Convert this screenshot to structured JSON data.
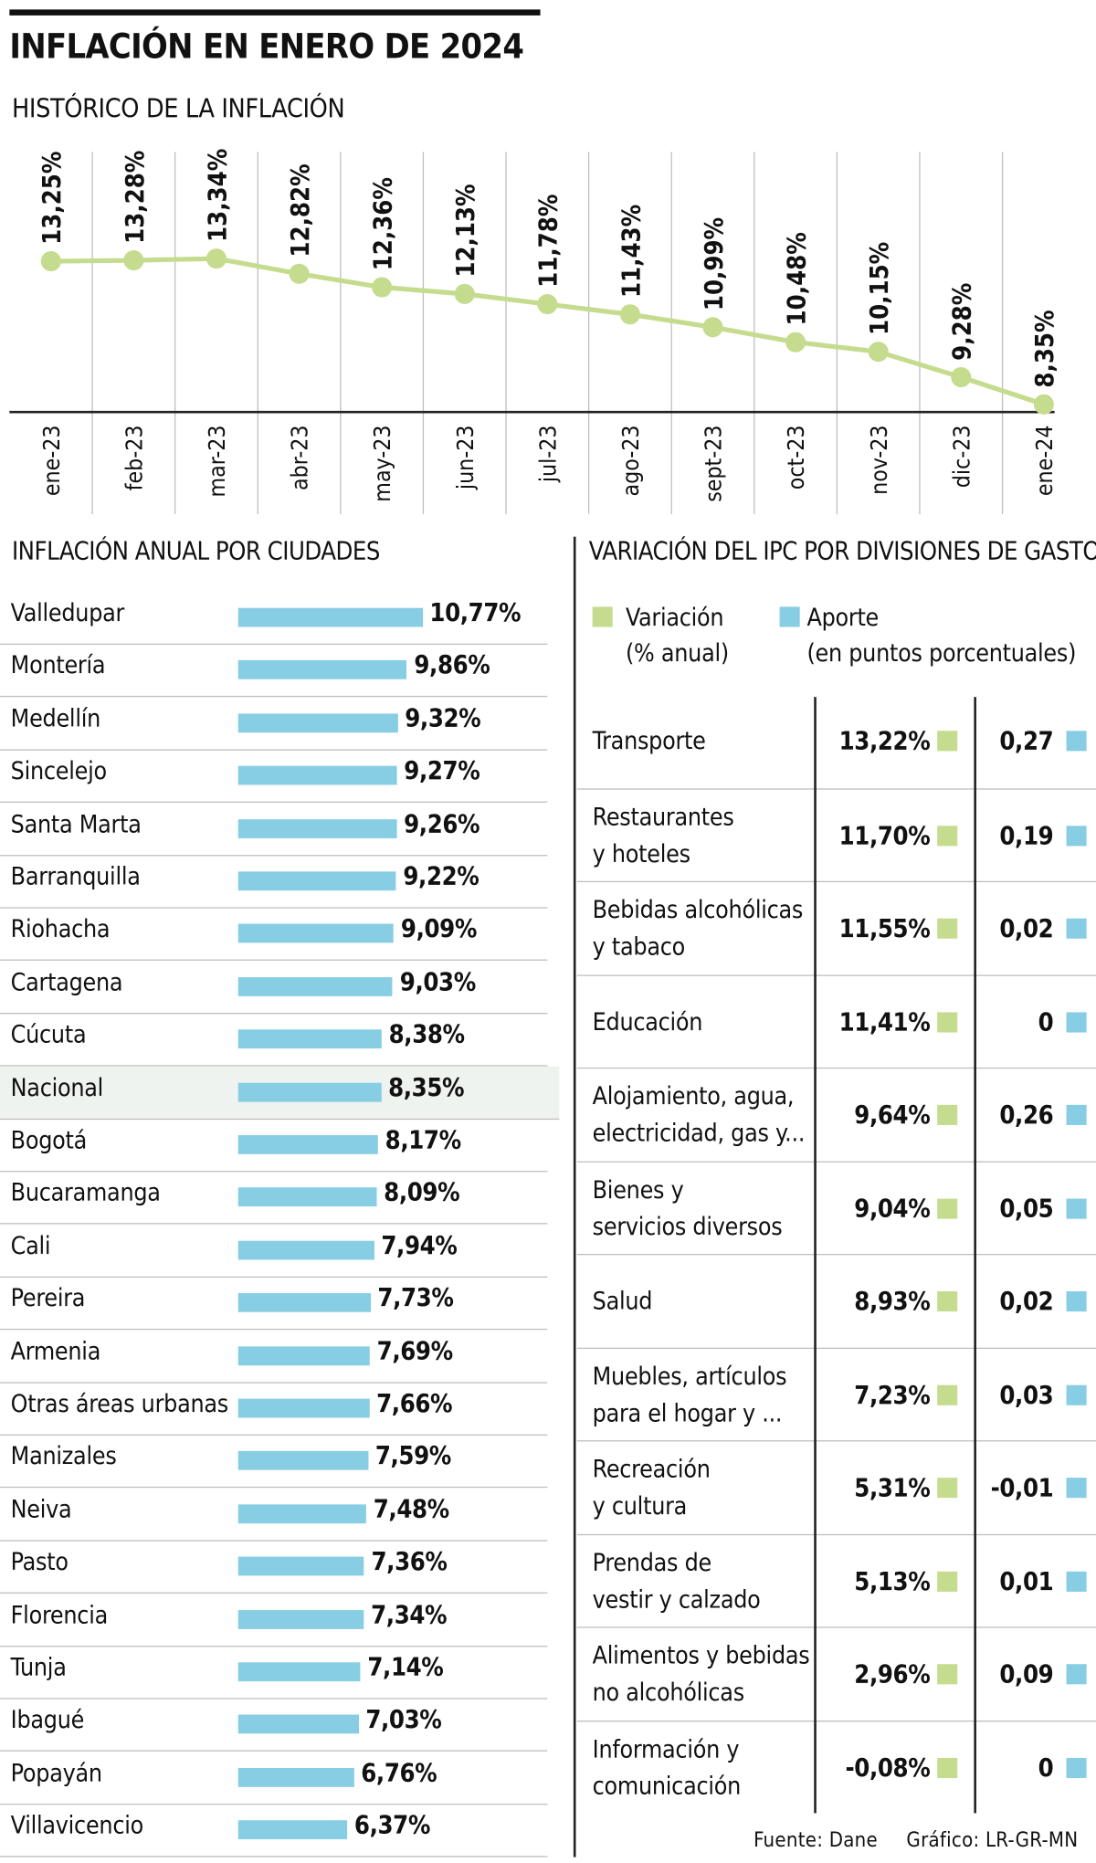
{
  "header": {
    "title": "INFLACIÓN EN ENERO DE 2024",
    "subtitle": "HISTÓRICO DE LA INFLACIÓN"
  },
  "colors": {
    "line": "#c5dc8f",
    "bar": "#87cde3",
    "grid": "#bfbfbf",
    "highlight_row": "#eef3ef"
  },
  "sections": {
    "cities_title": "INFLACIÓN ANUAL POR CIUDADES",
    "ipc_title": "VARIACIÓN DEL IPC POR DIVISIONES DE GASTO"
  },
  "legend": {
    "variacion": [
      "Variación",
      "(% anual)"
    ],
    "aporte": [
      "Aporte",
      "(en puntos porcentuales)"
    ]
  },
  "chart_data": [
    {
      "type": "line",
      "title": "HISTÓRICO DE LA INFLACIÓN",
      "x": [
        "ene-23",
        "feb-23",
        "mar-23",
        "abr-23",
        "may-23",
        "jun-23",
        "jul-23",
        "ago-23",
        "sept-23",
        "oct-23",
        "nov-23",
        "dic-23",
        "ene-24"
      ],
      "values": [
        13.25,
        13.28,
        13.34,
        12.82,
        12.36,
        12.13,
        11.78,
        11.43,
        10.99,
        10.48,
        10.15,
        9.28,
        8.35
      ],
      "labels": [
        "13,25%",
        "13,28%",
        "13,34%",
        "12,82%",
        "12,36%",
        "12,13%",
        "11,78%",
        "11,43%",
        "10,99%",
        "10,48%",
        "10,15%",
        "9,28%",
        "8,35%"
      ],
      "grid": "vertical"
    },
    {
      "type": "bar",
      "orientation": "horizontal",
      "title": "INFLACIÓN ANUAL POR CIUDADES",
      "highlight": "Nacional",
      "categories": [
        "Valledupar",
        "Montería",
        "Medellín",
        "Sincelejo",
        "Santa Marta",
        "Barranquilla",
        "Riohacha",
        "Cartagena",
        "Cúcuta",
        "Nacional",
        "Bogotá",
        "Bucaramanga",
        "Cali",
        "Pereira",
        "Armenia",
        "Otras áreas urbanas",
        "Manizales",
        "Neiva",
        "Pasto",
        "Florencia",
        "Tunja",
        "Ibagué",
        "Popayán",
        "Villavicencio"
      ],
      "values": [
        10.77,
        9.86,
        9.32,
        9.27,
        9.26,
        9.22,
        9.09,
        9.03,
        8.38,
        8.35,
        8.17,
        8.09,
        7.94,
        7.73,
        7.69,
        7.66,
        7.59,
        7.48,
        7.36,
        7.34,
        7.14,
        7.03,
        6.76,
        6.37
      ],
      "labels": [
        "10,77%",
        "9,86%",
        "9,32%",
        "9,27%",
        "9,26%",
        "9,22%",
        "9,09%",
        "9,03%",
        "8,38%",
        "8,35%",
        "8,17%",
        "8,09%",
        "7,94%",
        "7,73%",
        "7,69%",
        "7,66%",
        "7,59%",
        "7,48%",
        "7,36%",
        "7,34%",
        "7,14%",
        "7,03%",
        "6,76%",
        "6,37%"
      ]
    },
    {
      "type": "table",
      "title": "VARIACIÓN DEL IPC POR DIVISIONES DE GASTO",
      "rows": [
        {
          "name": [
            "Transporte"
          ],
          "variacion": "13,22%",
          "aporte": "0,27"
        },
        {
          "name": [
            "Restaurantes",
            "y hoteles"
          ],
          "variacion": "11,70%",
          "aporte": "0,19"
        },
        {
          "name": [
            "Bebidas alcohólicas",
            "y tabaco"
          ],
          "variacion": "11,55%",
          "aporte": "0,02"
        },
        {
          "name": [
            "Educación"
          ],
          "variacion": "11,41%",
          "aporte": "0"
        },
        {
          "name": [
            "Alojamiento, agua,",
            "electricidad, gas y..."
          ],
          "variacion": "9,64%",
          "aporte": "0,26"
        },
        {
          "name": [
            "Bienes y",
            "servicios diversos"
          ],
          "variacion": "9,04%",
          "aporte": "0,05"
        },
        {
          "name": [
            "Salud"
          ],
          "variacion": "8,93%",
          "aporte": "0,02"
        },
        {
          "name": [
            "Muebles, artículos",
            "para el hogar y ..."
          ],
          "variacion": "7,23%",
          "aporte": "0,03"
        },
        {
          "name": [
            "Recreación",
            "y cultura"
          ],
          "variacion": "5,31%",
          "aporte": "-0,01"
        },
        {
          "name": [
            "Prendas de",
            "vestir y calzado"
          ],
          "variacion": "5,13%",
          "aporte": "0,01"
        },
        {
          "name": [
            "Alimentos y bebidas",
            "no alcohólicas"
          ],
          "variacion": "2,96%",
          "aporte": "0,09"
        },
        {
          "name": [
            "Información y",
            "comunicación"
          ],
          "variacion": "-0,08%",
          "aporte": "0"
        }
      ]
    }
  ],
  "footer": {
    "source": "Fuente: Dane",
    "credit": "Gráfico: LR-GR-MN"
  }
}
